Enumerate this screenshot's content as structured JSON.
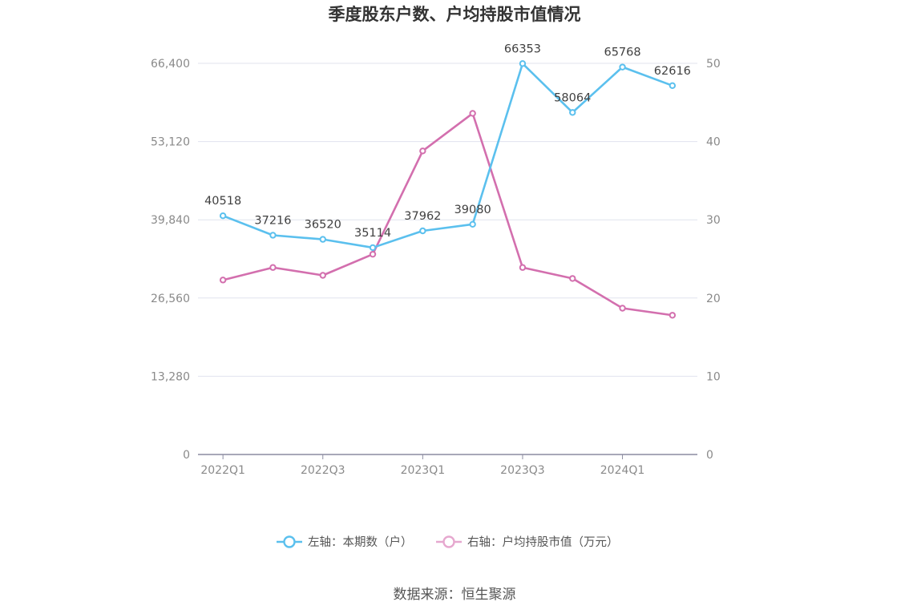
{
  "chart_data": {
    "type": "line",
    "title": "季度股东户数、户均持股市值情况",
    "categories": [
      "2022Q1",
      "2022Q2",
      "2022Q3",
      "2022Q4",
      "2023Q1",
      "2023Q2",
      "2023Q3",
      "2023Q4",
      "2024Q1",
      "2024Q2"
    ],
    "x_tick_labels": [
      "2022Q1",
      "2022Q3",
      "2023Q1",
      "2023Q3",
      "2024Q1"
    ],
    "left_axis": {
      "ylim": [
        0,
        66400
      ],
      "ticks": [
        "0",
        "13,280",
        "26,560",
        "39,840",
        "53,120",
        "66,400"
      ]
    },
    "right_axis": {
      "ylim": [
        0,
        50
      ],
      "ticks": [
        "0",
        "10",
        "20",
        "30",
        "40",
        "50"
      ]
    },
    "series": [
      {
        "name": "左轴：本期数（户）",
        "axis": "left",
        "color": "#5bc0ee",
        "values": [
          40518,
          37216,
          36520,
          35114,
          37962,
          39080,
          66353,
          58064,
          65768,
          62616
        ],
        "labels": [
          "40518",
          "37216",
          "36520",
          "35114",
          "37962",
          "39080",
          "66353",
          "58064",
          "65768",
          "62616"
        ]
      },
      {
        "name": "右轴：户均持股市值（万元）",
        "axis": "right",
        "color": "#d36fae",
        "values": [
          22.3,
          23.9,
          22.9,
          25.6,
          38.8,
          43.6,
          23.9,
          22.5,
          18.7,
          17.8
        ]
      }
    ],
    "legend": "bottom-center",
    "grid": true,
    "source": "数据来源：恒生聚源"
  }
}
